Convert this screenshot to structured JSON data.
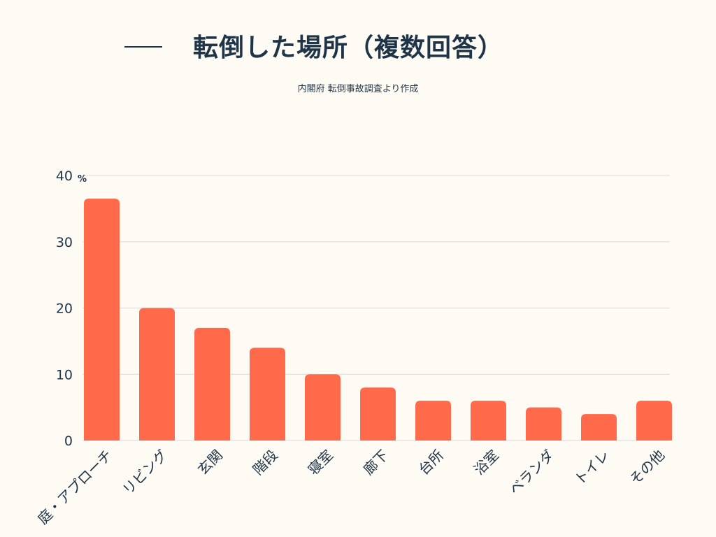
{
  "title": "転倒した場所（複数回答）",
  "source": "内閣府 転倒事故調査より作成",
  "colors": {
    "background": "#fdfbf4",
    "bar": "#ff6b4a",
    "text": "#1f3447",
    "grid": "#d9d9d9"
  },
  "chart_data": {
    "type": "bar",
    "title": "転倒した場所（複数回答）",
    "subtitle": "内閣府 転倒事故調査より作成",
    "xlabel": "",
    "ylabel": "",
    "y_unit": "%",
    "ylim": [
      0,
      40
    ],
    "yticks": [
      0,
      10,
      20,
      30,
      40
    ],
    "grid": true,
    "categories": [
      "庭・アプローチ",
      "リビング",
      "玄関",
      "階段",
      "寝室",
      "廊下",
      "台所",
      "浴室",
      "ベランダ",
      "トイレ",
      "その他"
    ],
    "values": [
      36.5,
      20,
      17,
      14,
      10,
      8,
      6,
      6,
      5,
      4,
      6
    ]
  }
}
